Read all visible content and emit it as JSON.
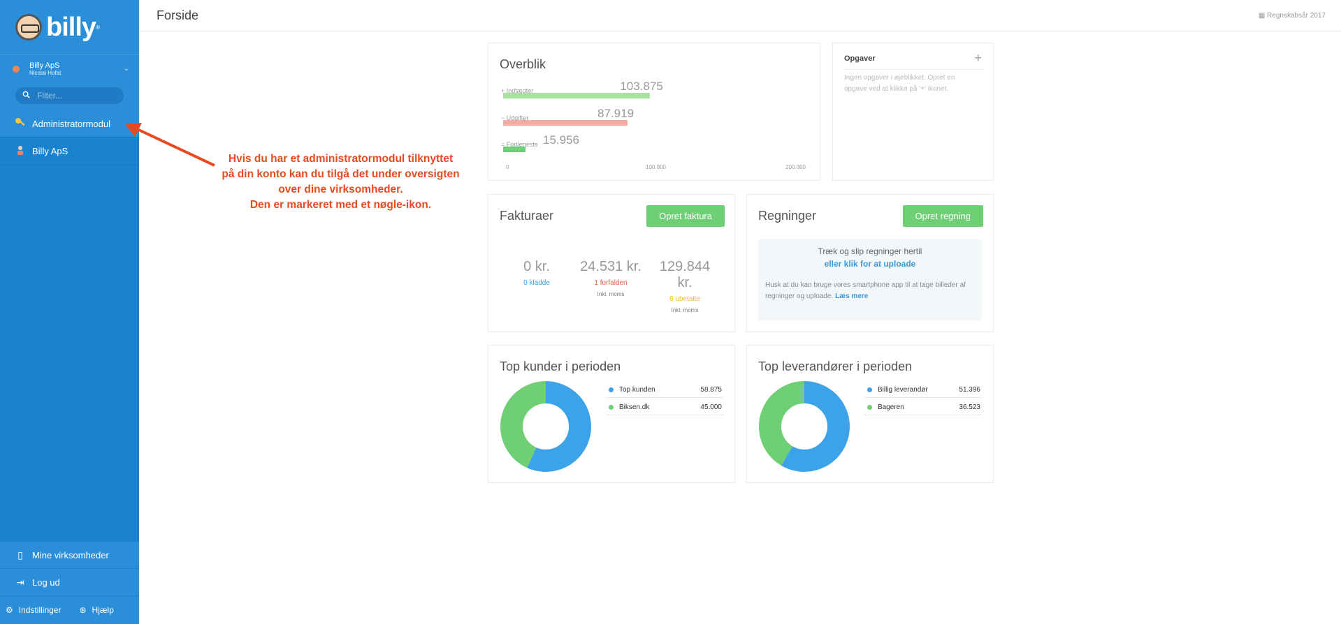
{
  "sidebar": {
    "logo_text": "billy",
    "logo_mark": "®",
    "org_name": "Billy ApS",
    "org_user": "Nicolai Hofat",
    "filter_placeholder": "Filter...",
    "items": [
      {
        "label": "Administratormodul",
        "icon": "key-icon"
      },
      {
        "label": "Billy ApS",
        "icon": "company-avatar-icon"
      }
    ],
    "bottom_items": [
      {
        "label": "Mine virksomheder",
        "icon": "building-icon"
      },
      {
        "label": "Log ud",
        "icon": "logout-icon"
      }
    ],
    "settings_label": "Indstillinger",
    "help_label": "Hjælp"
  },
  "header": {
    "title": "Forside",
    "fiscal_year": "Regnskabsår 2017"
  },
  "overview": {
    "title": "Overblik",
    "rows": [
      {
        "sign": "+",
        "label": "Indtægter",
        "value": "103.875",
        "amount": 103875,
        "color": "#a7e39e"
      },
      {
        "sign": "−",
        "label": "Udgifter",
        "value": "87.919",
        "amount": 87919,
        "color": "#f5aba3"
      },
      {
        "sign": "=",
        "label": "Fortjeneste",
        "value": "15.956",
        "amount": 15956,
        "color": "#6fcf75"
      }
    ],
    "axis_max": 200000,
    "axis_labels": [
      "0",
      "100.000",
      "200.000"
    ]
  },
  "tasks": {
    "title": "Opgaver",
    "add_label": "+",
    "empty_text": "Ingen opgaver i øjeblikket. Opret en opgave ved at klikke på '+' ikonet."
  },
  "invoices": {
    "title": "Fakturaer",
    "button": "Opret faktura",
    "stats": [
      {
        "amount": "0 kr.",
        "label": "0 kladde",
        "sub": "",
        "color": "#3a9ad9"
      },
      {
        "amount": "24.531 kr.",
        "label": "1 forfalden",
        "sub": "Inkl. moms",
        "color": "#e8594a"
      },
      {
        "amount": "129.844 kr.",
        "label": "6 ubetalte",
        "sub": "Inkl. moms",
        "color": "#f1c40f"
      }
    ]
  },
  "bills": {
    "title": "Regninger",
    "button": "Opret regning",
    "drop_line1": "Træk og slip regninger hertil",
    "drop_line2": "eller klik for at uploade",
    "hint": "Husk at du kan bruge vores smartphone app til at tage billeder af regninger og uploade.",
    "hint_link": "Læs mere"
  },
  "top_customers": {
    "title": "Top kunder i perioden",
    "items": [
      {
        "name": "Top kunden",
        "value": "58.875",
        "amount": 58875,
        "color": "#3ca3e8"
      },
      {
        "name": "Biksen.dk",
        "value": "45.000",
        "amount": 45000,
        "color": "#6fcf75"
      }
    ]
  },
  "top_suppliers": {
    "title": "Top leverandører i perioden",
    "items": [
      {
        "name": "Billig leverandør",
        "value": "51.396",
        "amount": 51396,
        "color": "#3ca3e8"
      },
      {
        "name": "Bageren",
        "value": "36.523",
        "amount": 36523,
        "color": "#6fcf75"
      }
    ]
  },
  "annotation": {
    "lines": [
      "Hvis du har et administratormodul tilknyttet",
      "på din konto kan du tilgå det under oversigten",
      "over dine virksomheder.",
      "Den er markeret med et nøgle-ikon."
    ],
    "color": "#e84a1f"
  }
}
